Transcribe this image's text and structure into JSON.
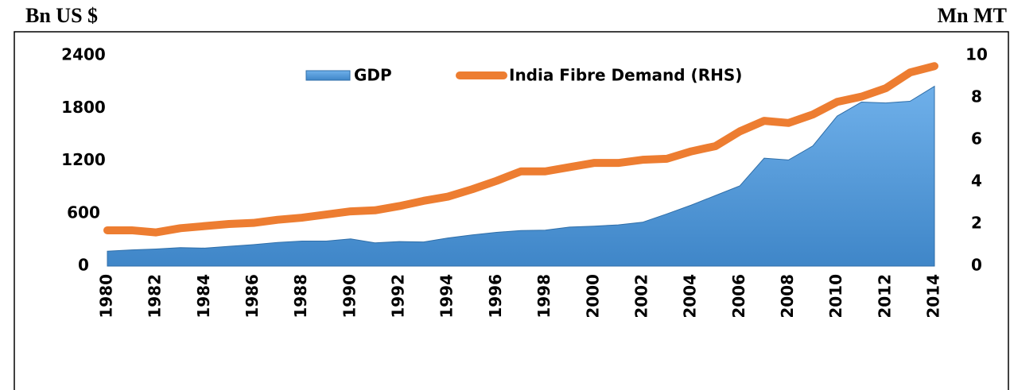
{
  "chart_data": {
    "type": "area_line",
    "y_label": "Bn US $",
    "y2_label": "Mn MT",
    "categories": [
      "1980",
      null,
      "1982",
      null,
      "1984",
      null,
      "1986",
      null,
      "1988",
      null,
      "1990",
      null,
      "1992",
      null,
      "1994",
      null,
      "1996",
      null,
      "1998",
      null,
      "2000",
      null,
      "2002",
      null,
      "2004",
      null,
      "2006",
      null,
      "2008",
      null,
      "2010",
      null,
      "2012",
      null,
      "2014"
    ],
    "series": [
      {
        "name": "GDP",
        "color": "#5b9bd5",
        "kind": "area",
        "axis": "y",
        "values": [
          170,
          185,
          195,
          210,
          205,
          225,
          245,
          270,
          285,
          285,
          310,
          265,
          280,
          275,
          320,
          355,
          385,
          405,
          410,
          445,
          455,
          470,
          500,
          595,
          695,
          805,
          915,
          1230,
          1210,
          1370,
          1710,
          1870,
          1860,
          1880,
          2050
        ]
      },
      {
        "name": "India Fibre Demand (RHS)",
        "color": "#ed7d31",
        "kind": "line",
        "axis": "y2",
        "values": [
          1.7,
          1.7,
          1.6,
          1.8,
          1.9,
          2.0,
          2.05,
          2.2,
          2.3,
          2.45,
          2.6,
          2.65,
          2.85,
          3.1,
          3.3,
          3.65,
          4.05,
          4.5,
          4.5,
          4.7,
          4.9,
          4.9,
          5.05,
          5.1,
          5.45,
          5.7,
          6.4,
          6.9,
          6.8,
          7.2,
          7.8,
          8.05,
          8.45,
          9.2,
          9.5
        ]
      }
    ],
    "ylim": [
      0,
      2400
    ],
    "yticks": [
      0,
      600,
      1200,
      1800,
      2400
    ],
    "y2lim": [
      0,
      10
    ],
    "y2ticks": [
      0,
      2,
      4,
      6,
      8,
      10
    ],
    "legend": "top"
  }
}
